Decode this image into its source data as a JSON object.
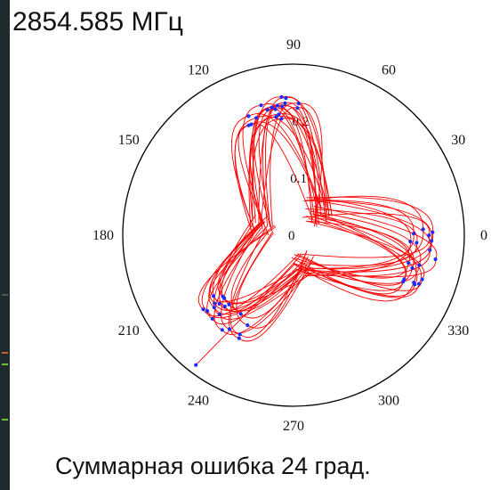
{
  "header": {
    "frequency_label": "2854.585 МГц"
  },
  "footer": {
    "caption": "Суммарная ошибка 24 град."
  },
  "colors": {
    "trace": "#ff0000",
    "marker": "#1a2cff",
    "circle": "#000000",
    "background": "#ffffff",
    "left_strip": "#1f2a2c"
  },
  "chart_data": {
    "type": "scatter",
    "subtype": "polar",
    "title": "",
    "angular_tick_labels": [
      "0",
      "30",
      "60",
      "90",
      "120",
      "150",
      "180",
      "210",
      "240",
      "270",
      "300",
      "330"
    ],
    "radial_tick_labels": [
      "0",
      "0.1",
      "0.2"
    ],
    "radial_range": [
      0,
      0.3
    ],
    "angular_unit": "degrees",
    "grid": false,
    "series": [
      {
        "marker": "point",
        "line": "connected",
        "lobes": [
          {
            "center_deg": 100,
            "count": 18,
            "r_inner": 0.055,
            "r_outer_min": 0.205,
            "r_outer_max": 0.245,
            "spread_deg": 32
          },
          {
            "center_deg": 350,
            "count": 18,
            "r_inner": 0.055,
            "r_outer_min": 0.205,
            "r_outer_max": 0.255,
            "spread_deg": 30
          },
          {
            "center_deg": 230,
            "count": 18,
            "r_inner": 0.055,
            "r_outer_min": 0.16,
            "r_outer_max": 0.21,
            "spread_deg": 30
          }
        ],
        "outlier_points": [
          {
            "angle_deg": 233,
            "r": 0.285
          }
        ]
      }
    ]
  }
}
